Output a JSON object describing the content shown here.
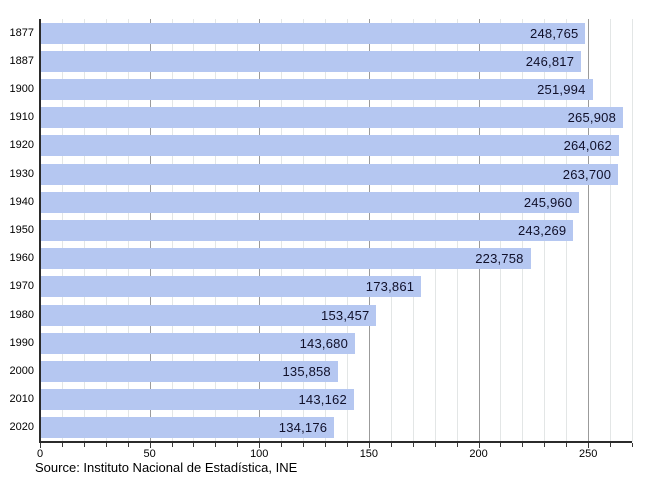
{
  "chart_data": {
    "type": "bar",
    "orientation": "horizontal",
    "title": "",
    "xlabel": "",
    "ylabel": "",
    "categories": [
      "1877",
      "1887",
      "1900",
      "1910",
      "1920",
      "1930",
      "1940",
      "1950",
      "1960",
      "1970",
      "1980",
      "1990",
      "2000",
      "2010",
      "2020"
    ],
    "values": [
      248765,
      246817,
      251994,
      265908,
      264062,
      263700,
      245960,
      243269,
      223758,
      173861,
      153457,
      143680,
      135858,
      143162,
      134176
    ],
    "value_labels": [
      "248,765",
      "246,817",
      "251,994",
      "265,908",
      "264,062",
      "263,700",
      "245,960",
      "243,269",
      "223,758",
      "173,861",
      "153,457",
      "143,680",
      "135,858",
      "143,162",
      "134,176"
    ],
    "value_scale_divisor": 1000,
    "x_ticks": [
      0,
      50,
      100,
      150,
      200,
      250
    ],
    "xlim": [
      0,
      270
    ],
    "minor_tick_step": 10,
    "major_tick_step": 50,
    "grid": true,
    "legend": null,
    "bar_color": "#b5c7f1",
    "minor_grid_color": "#e3e6e6",
    "major_grid_color": "#9b9b9b",
    "axis_color": "#2b2b2b",
    "source": "Source: Instituto Nacional de Estadística, INE"
  }
}
